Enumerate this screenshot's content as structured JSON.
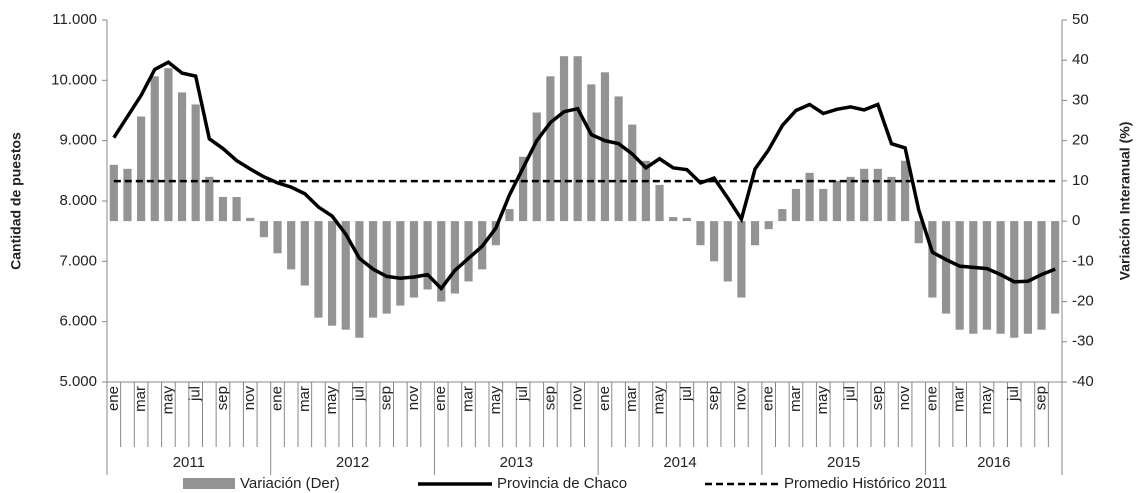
{
  "chart_data": {
    "type": "combo",
    "categories": [
      "ene",
      null,
      "mar",
      null,
      "may",
      null,
      "jul",
      null,
      "sep",
      null,
      "nov",
      null,
      "ene",
      null,
      "mar",
      null,
      "may",
      null,
      "jul",
      null,
      "sep",
      null,
      "nov",
      null,
      "ene",
      null,
      "mar",
      null,
      "may",
      null,
      "jul",
      null,
      "sep",
      null,
      "nov",
      null,
      "ene",
      null,
      "mar",
      null,
      "may",
      null,
      "jul",
      null,
      "sep",
      null,
      "nov",
      null,
      "ene",
      null,
      "mar",
      null,
      "may",
      null,
      "jul",
      null,
      "sep",
      null,
      "nov",
      null,
      "ene",
      null,
      "mar",
      null,
      "may",
      null,
      "jul",
      null,
      "sep",
      null
    ],
    "years": [
      "2011",
      "2012",
      "2013",
      "2014",
      "2015",
      "2016"
    ],
    "ylabel": "Cantidad de puestos",
    "y2label": "Variación Interanual (%)",
    "ylim": [
      5000,
      11000
    ],
    "yticks": [
      {
        "value": 5000,
        "label": "5.000"
      },
      {
        "value": 6000,
        "label": "6.000"
      },
      {
        "value": 7000,
        "label": "7.000"
      },
      {
        "value": 8000,
        "label": "8.000"
      },
      {
        "value": 9000,
        "label": "9.000"
      },
      {
        "value": 10000,
        "label": "10.000"
      },
      {
        "value": 11000,
        "label": "11.000"
      }
    ],
    "y2lim": [
      -40,
      50
    ],
    "y2ticks": [
      -40,
      -30,
      -20,
      -10,
      0,
      10,
      20,
      30,
      40,
      50
    ],
    "series": [
      {
        "name": "Variación (Der)",
        "type": "bar",
        "axis": "y2",
        "color": "#939393",
        "values": [
          14,
          13,
          26,
          36,
          38,
          32,
          29,
          11,
          6,
          6,
          0.8,
          -4,
          -8,
          -12,
          -16,
          -24,
          -26,
          -27,
          -29,
          -24,
          -23,
          -21,
          -19,
          -17,
          -20,
          -18,
          -15,
          -12,
          -6,
          3,
          16,
          27,
          36,
          41,
          41,
          34,
          37,
          31,
          24,
          15,
          9,
          1,
          0.8,
          -6,
          -10,
          -15,
          -19,
          -6,
          -2,
          3,
          8,
          12,
          8,
          10,
          11,
          13,
          13,
          11,
          15,
          -5.5,
          -19,
          -23,
          -27,
          -28,
          -27,
          -28,
          -29,
          -28,
          -27,
          -23
        ]
      },
      {
        "name": "Provincia de Chaco",
        "type": "line",
        "color": "#000000",
        "values": [
          9050,
          9400,
          9750,
          10180,
          10300,
          10120,
          10070,
          9030,
          8870,
          8670,
          8530,
          8400,
          8300,
          8230,
          8120,
          7900,
          7750,
          7450,
          7050,
          6870,
          6750,
          6720,
          6740,
          6780,
          6550,
          6850,
          7050,
          7250,
          7550,
          8100,
          8550,
          9000,
          9300,
          9480,
          9530,
          9100,
          9000,
          8950,
          8780,
          8550,
          8700,
          8550,
          8520,
          8300,
          8380,
          8050,
          7700,
          8530,
          8850,
          9250,
          9500,
          9600,
          9450,
          9520,
          9560,
          9510,
          9600,
          8950,
          8880,
          7850,
          7150,
          7030,
          6920,
          6900,
          6880,
          6780,
          6660,
          6670,
          6780,
          6870
        ]
      },
      {
        "name": "Promedio Histórico 2011",
        "type": "line",
        "dashed": true,
        "color": "#000000",
        "values": [
          8330,
          8330,
          8330,
          8330,
          8330,
          8330,
          8330,
          8330,
          8330,
          8330,
          8330,
          8330,
          8330,
          8330,
          8330,
          8330,
          8330,
          8330,
          8330,
          8330,
          8330,
          8330,
          8330,
          8330,
          8330,
          8330,
          8330,
          8330,
          8330,
          8330,
          8330,
          8330,
          8330,
          8330,
          8330,
          8330,
          8330,
          8330,
          8330,
          8330,
          8330,
          8330,
          8330,
          8330,
          8330,
          8330,
          8330,
          8330,
          8330,
          8330,
          8330,
          8330,
          8330,
          8330,
          8330,
          8330,
          8330,
          8330,
          8330,
          8330,
          8330,
          8330,
          8330,
          8330,
          8330,
          8330,
          8330,
          8330,
          8330,
          8330
        ]
      }
    ]
  }
}
